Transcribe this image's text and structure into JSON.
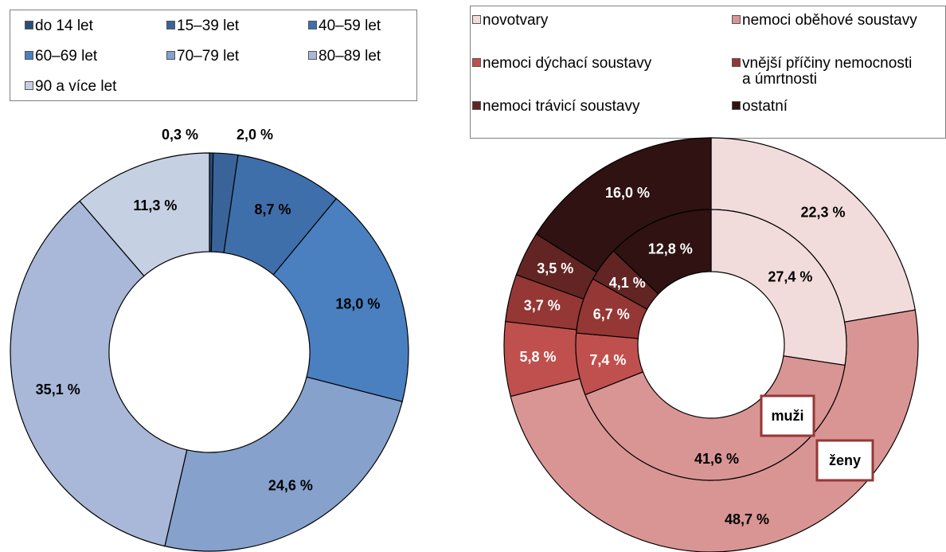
{
  "chart_data": [
    {
      "type": "pie",
      "variant": "donut",
      "legend": [
        {
          "label": "do 14 let",
          "color": "#2a4d7a"
        },
        {
          "label": "15–39 let",
          "color": "#3a6399"
        },
        {
          "label": "40–59 let",
          "color": "#3e6faa"
        },
        {
          "label": "60–69 let",
          "color": "#4a80c0"
        },
        {
          "label": "70–79 let",
          "color": "#85a1cc"
        },
        {
          "label": "80–89 let",
          "color": "#a9b8d8"
        },
        {
          "label": "90 a více let",
          "color": "#c5d0e3"
        }
      ],
      "values": [
        0.3,
        2.0,
        8.7,
        18.0,
        24.6,
        35.1,
        11.3
      ],
      "labels": [
        "0,3 %",
        "2,0 %",
        "8,7 %",
        "18,0 %",
        "24,6 %",
        "35,1 %",
        "11,3 %"
      ]
    },
    {
      "type": "pie",
      "variant": "double-donut",
      "legend": [
        {
          "label": "novotvary",
          "color": "#f2dcdb"
        },
        {
          "label": "nemoci oběhové soustavy",
          "color": "#d99594"
        },
        {
          "label": "nemoci dýchací soustavy",
          "color": "#c0504d"
        },
        {
          "label": "vnější příčiny nemocnosti\na úmrtnosti",
          "color": "#953735"
        },
        {
          "label": "nemoci trávicí soustavy",
          "color": "#632523"
        },
        {
          "label": "ostatní",
          "color": "#2f1211"
        }
      ],
      "series": [
        {
          "name": "ženy",
          "values": [
            22.3,
            48.7,
            5.8,
            3.7,
            3.5,
            16.0
          ],
          "labels": [
            "22,3 %",
            "48,7 %",
            "5,8 %",
            "3,7 %",
            "3,5 %",
            "16,0 %"
          ]
        },
        {
          "name": "muži",
          "values": [
            27.4,
            41.6,
            7.4,
            6.7,
            4.1,
            12.8
          ],
          "labels": [
            "27,4 %",
            "41,6 %",
            "7,4 %",
            "6,7 %",
            "4,1 %",
            "12,8 %"
          ]
        }
      ]
    }
  ]
}
